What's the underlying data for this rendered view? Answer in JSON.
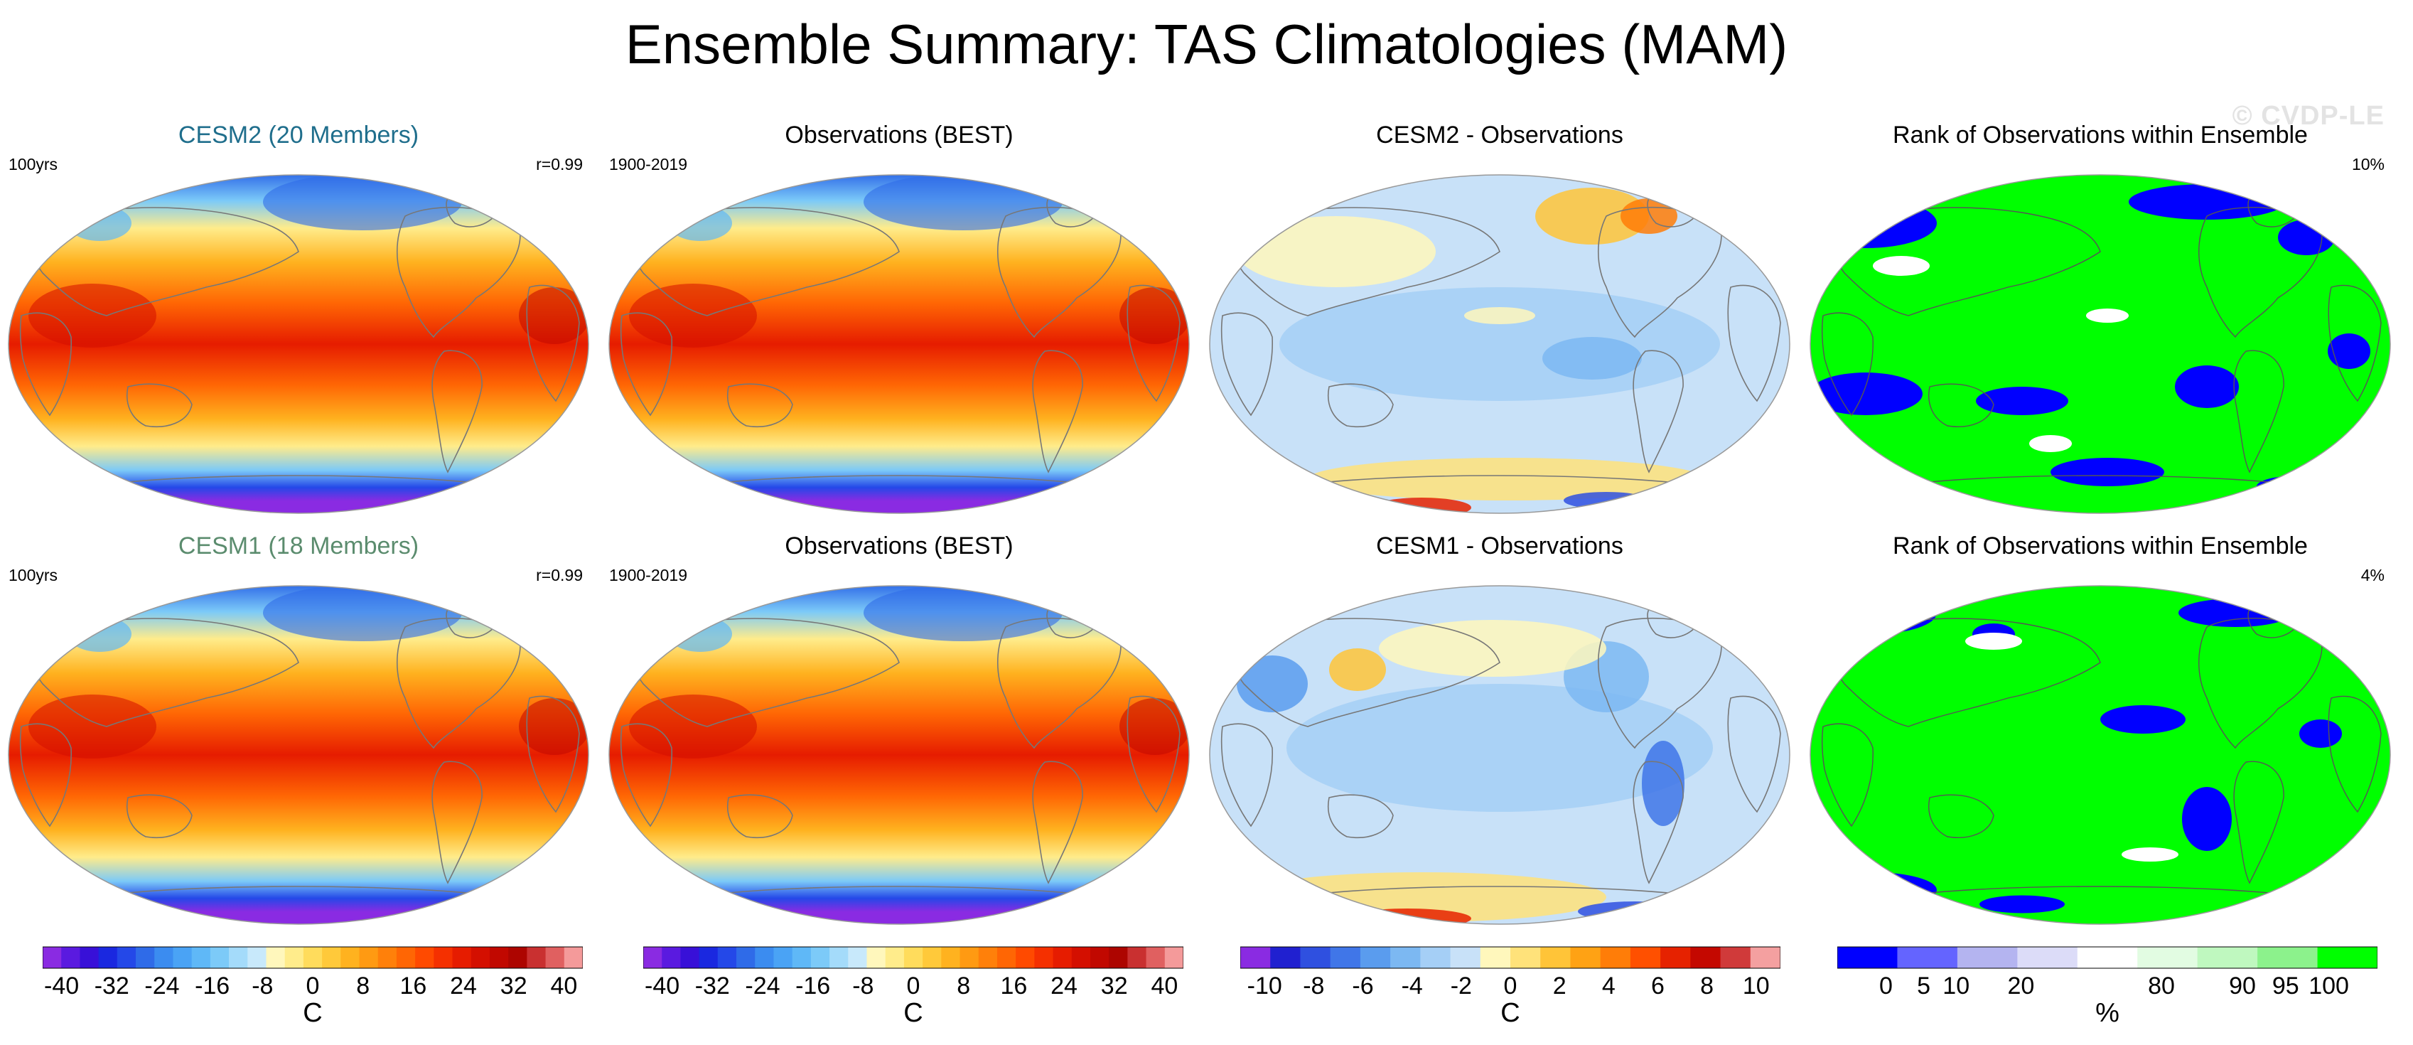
{
  "title": "Ensemble Summary: TAS Climatologies (MAM)",
  "watermark": "© CVDP-LE",
  "panels": [
    {
      "title": "CESM2 (20 Members)",
      "title_color": "#1f6e8c",
      "left": "100yrs",
      "right": "r=0.99",
      "type": "climatology"
    },
    {
      "title": "Observations (BEST)",
      "title_color": "#000000",
      "left": "1900-2019",
      "right": "",
      "type": "climatology"
    },
    {
      "title": "CESM2 - Observations",
      "title_color": "#000000",
      "left": "",
      "right": "",
      "type": "difference"
    },
    {
      "title": "Rank of Observations within Ensemble",
      "title_color": "#000000",
      "left": "",
      "right": "10%",
      "type": "rank"
    },
    {
      "title": "CESM1 (18 Members)",
      "title_color": "#5b8c6e",
      "left": "100yrs",
      "right": "r=0.99",
      "type": "climatology"
    },
    {
      "title": "Observations (BEST)",
      "title_color": "#000000",
      "left": "1900-2019",
      "right": "",
      "type": "climatology"
    },
    {
      "title": "CESM1 - Observations",
      "title_color": "#000000",
      "left": "",
      "right": "",
      "type": "difference"
    },
    {
      "title": "Rank of Observations within Ensemble",
      "title_color": "#000000",
      "left": "",
      "right": "4%",
      "type": "rank"
    }
  ],
  "chart_data": [
    {
      "type": "colorbar",
      "name": "temperature",
      "unit": "C",
      "tick_labels": [
        "-40",
        "-32",
        "-24",
        "-16",
        "-8",
        "0",
        "8",
        "16",
        "24",
        "32",
        "40"
      ],
      "colors": [
        "#8a2be2",
        "#5a1ae0",
        "#3810d8",
        "#1a28e0",
        "#2448e8",
        "#2f6be8",
        "#3b8cf0",
        "#4aa3f5",
        "#5fb8f7",
        "#7ccaf8",
        "#a4dbfa",
        "#c8e9fb",
        "#fff7bc",
        "#ffec8b",
        "#ffdc5c",
        "#ffc93a",
        "#ffb21f",
        "#ff9a12",
        "#ff800a",
        "#ff6604",
        "#ff4a00",
        "#f53000",
        "#e61c00",
        "#d40f00",
        "#c10800",
        "#ad0500",
        "#c93030",
        "#e06060",
        "#f49a9a"
      ]
    },
    {
      "type": "colorbar",
      "name": "difference",
      "unit": "C",
      "tick_labels": [
        "-10",
        "-8",
        "-6",
        "-4",
        "-2",
        "0",
        "2",
        "4",
        "6",
        "8",
        "10"
      ],
      "colors": [
        "#8a2be2",
        "#2020d0",
        "#2f50e0",
        "#4076e8",
        "#5a9cee",
        "#7cb8f2",
        "#a5cff6",
        "#c8e1f8",
        "#fff7bc",
        "#ffe27a",
        "#ffc438",
        "#ffa214",
        "#ff7d08",
        "#ff5000",
        "#e62200",
        "#c40800",
        "#d03a3a",
        "#f4a0a0"
      ]
    },
    {
      "type": "colorbar",
      "name": "rank",
      "unit": "%",
      "tick_labels": [
        "0",
        "5",
        "10",
        "20",
        "80",
        "90",
        "95",
        "100"
      ],
      "colors": [
        "#0000ff",
        "#6464ff",
        "#b4b4f0",
        "#dcdcf8",
        "#ffffff",
        "#e2fce2",
        "#bff8bf",
        "#8cf28c",
        "#00ff00"
      ]
    }
  ]
}
